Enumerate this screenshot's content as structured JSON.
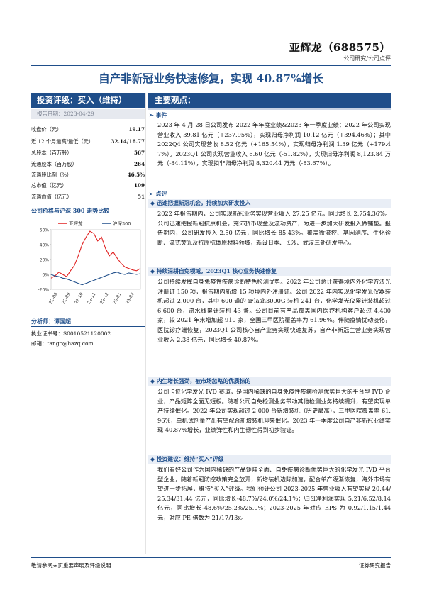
{
  "header": {
    "company": "亚辉龙（688575）",
    "report_type": "公司研究/公司点评",
    "headline": "自产非新冠业务快速修复，实现 40.87%增长"
  },
  "sidebar": {
    "rating": "投资评级：买入（维持）",
    "report_date": "报告日期：2023-04-29",
    "stats": [
      {
        "label": "收盘价（元）",
        "value": "19.17"
      },
      {
        "label": "近 12 个月最高/最低（元）",
        "value": "32.14/16.77"
      },
      {
        "label": "总股本（百万股）",
        "value": "567"
      },
      {
        "label": "流通股本（百万股）",
        "value": "264"
      },
      {
        "label": "流通股比例（%）",
        "value": "46.5%"
      },
      {
        "label": "总市值（亿元）",
        "value": "109"
      },
      {
        "label": "流通市值（亿元）",
        "value": "51"
      }
    ],
    "chart_title": "公司价格与沪深 300 走势比较",
    "analyst_title": "分析师：谭国超",
    "cert_no": "执业证书号：S0010521120002",
    "email": "邮箱：tangc@hazq.com"
  },
  "main": {
    "section_title": "主要观点：",
    "event_title": "事件",
    "event_text": "2023 年 4 月 28 日公司发布 2022 年年度业绩&2023 年一季度业绩：2022 年公司实现营业收入 39.81 亿元（+237.95%），实现归母净利润 10.12 亿元（+394.46%）；其中 2022Q4 公司实现营收 8.52 亿元（+165.54%），实现归母净利润 1.39 亿元（+179.47%）。2023Q1 公司实现营业收入 6.60 亿元（-51.82%），实现归母净利润 8,123.84 万元（-84.11%），实现扣非归母净利润 8,320.44 万元（-83.67%）。",
    "comment_title": "点评",
    "sections": [
      {
        "title": "迅速把握新冠机会，持续加大研发投入",
        "text": "2022 年报告期内，公司实现新冠业务实现营业收入 27.25 亿元，同比增长 2,754.36%。公司迅速把握新冠抗原机会，充沛货币现金及流动资产，为进一步加大研发投入做铺垫。报告期内，公司研发投入 2.50 亿元，同比增长 85.43%。覆盖微流控、基因测序、生化诊断、流式荧光及抗原抗体原材料领域，新设日本、长沙、武汉三处研发中心。"
      },
      {
        "title": "持续深耕自免领域，2023Q1 核心业务快速修复",
        "text": "公司持续发挥自身免疫性疾病诊断特色检测优势。2022 年公司总计获得境内外化学方法光注册证 150 项，报告期内新增 15 项境内外注册证。公司 2022 年内实现化学发光仪器装机超过 2,000 台，其中 600 道的 iFlash3000G 装机 241 台，化学发光仪累计装机超过 6,600 台，流水线累计装机 43 条。公司目前有产品覆盖国内医疗机构客户超过 4,400 家，较 2021 年末增加超 910 家，全国三甲医院覆盖率为 61.96%。伴随疫情扰动淡化，医院诊疗端恢复，2023Q1 公司核心自产业务实现快速复苏，自产非新冠主营业务实现营业收入 2.38 亿元，同比增长 40.87%。"
      },
      {
        "title": "内生增长强劲，被市场忽略的优质标的",
        "text": "公司卡位化学发光 IVD 赛道，是国内稀缺的自身免疫性疾病检测优势巨大的平台型 IVD 企业，产品矩阵全面无短板。随着公司自免检测业务带动其他检测业务持续提升，有望实现单产持续催化。2022 年公司实现超过 2,000 台新增装机（历史最高），三甲医院覆盖率 61.96%，单机试剂量产出有望配合新增装机迎来催化。2023 年一季度公司自产非新冠业绩实现 40.87%增长，业绩弹性和内生韧性得到初步验证。"
      },
      {
        "title": "投资建议：维持“买入”评级",
        "text": "我们看好公司作为国内稀缺的产品矩阵全面、自免疾病诊断优势巨大的化学发光 IVD 平台型企业，随着新冠防控政策完全放开，新增装机边际加速，配合单产逐渐恢复，海外市场有望进一步拓展，维持“买入”评级。我们预计公司 2023-2025 年营业收入有望实现 20.44/25.34/31.44 亿元，同比增长-48.7%/24.0%/24.1%；归母净利润实现 5.21/6.52/8.14 亿元，同比增长-48.6%/25.2%/25.0%；2023-2025 年对应 EPS 为 0.92/1.15/1.44 元，对应 PE 倍数为 21/17/13x。"
      }
    ]
  },
  "footer": {
    "left": "敬请参阅末页重要声明及评级说明",
    "right": "证券研究报告"
  },
  "chart_data": {
    "type": "line",
    "title": "",
    "series": [
      {
        "name": "亚辉龙",
        "color": "#e02020",
        "values": [
          -5,
          -2,
          3,
          0,
          -3,
          5,
          12,
          25,
          40,
          50,
          58,
          55,
          45,
          50,
          35,
          25,
          30,
          22,
          15,
          10,
          8,
          6,
          5,
          8
        ]
      },
      {
        "name": "沪深300",
        "color": "#1f4e8a",
        "values": [
          0,
          -2,
          -3,
          -5,
          -6,
          -8,
          -10,
          -12,
          -14,
          -12,
          -10,
          -8,
          -6,
          -4,
          -2,
          0,
          2,
          3,
          1,
          0,
          2,
          1,
          0,
          1
        ]
      }
    ],
    "x_ticks": [
      "22-08",
      "22-09",
      "22-10",
      "22-11",
      "22-12",
      "23-01",
      "23-02"
    ],
    "y_ticks": [
      "60%",
      "40%",
      "20%",
      "0%",
      "-20%"
    ],
    "ylim": [
      -20,
      60
    ],
    "legend": "top"
  }
}
